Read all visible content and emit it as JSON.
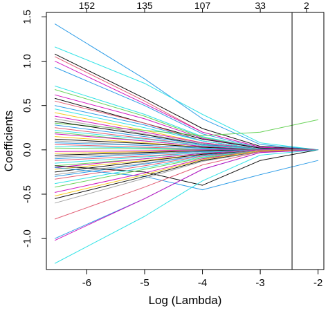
{
  "chart_data": {
    "type": "line",
    "title": "",
    "xlabel": "Log (Lambda)",
    "ylabel": "Coefficients",
    "xlim": [
      -6.7,
      -1.9
    ],
    "ylim": [
      -1.35,
      1.55
    ],
    "x_ticks": [
      -6,
      -5,
      -4,
      -3,
      -2
    ],
    "x_tick_labels": [
      "-6",
      "-5",
      "-4",
      "-3",
      "-2"
    ],
    "y_ticks": [
      -1.0,
      -0.5,
      0.0,
      0.5,
      1.0,
      1.5
    ],
    "y_tick_labels": [
      "-1.0",
      "-0.5",
      "0.0",
      "0.5",
      "1.0",
      "1.5"
    ],
    "top_axis": {
      "ticks": [
        -6.0,
        -5.0,
        -4.0,
        -3.0,
        -2.2
      ],
      "labels": [
        "152",
        "135",
        "107",
        "33",
        "2"
      ]
    },
    "vline_x": -2.45,
    "colors": [
      "#000000",
      "#DF536B",
      "#61D04F",
      "#2297E6",
      "#28E2E5",
      "#CD0BBC",
      "#F5C710",
      "#9E9E9E"
    ],
    "x_grid": [
      -6.55,
      -5.0,
      -4.0,
      -3.0,
      -2.0
    ],
    "series": [
      {
        "color": "#2297E6",
        "values": [
          1.42,
          0.8,
          0.35,
          0.06,
          0
        ]
      },
      {
        "color": "#28E2E5",
        "values": [
          1.16,
          0.75,
          0.4,
          0.08,
          0
        ]
      },
      {
        "color": "#000000",
        "values": [
          1.08,
          0.58,
          0.24,
          0.04,
          0
        ]
      },
      {
        "color": "#DF536B",
        "values": [
          1.05,
          0.55,
          0.2,
          0.03,
          0
        ]
      },
      {
        "color": "#CD0BBC",
        "values": [
          1.0,
          0.52,
          0.2,
          0.03,
          0
        ]
      },
      {
        "color": "#2297E6",
        "values": [
          0.93,
          0.5,
          0.18,
          0.02,
          0
        ]
      },
      {
        "color": "#28E2E5",
        "values": [
          0.72,
          0.4,
          0.15,
          0.02,
          0
        ]
      },
      {
        "color": "#61D04F",
        "values": [
          0.68,
          0.38,
          0.14,
          0.02,
          0
        ]
      },
      {
        "color": "#CD0BBC",
        "values": [
          0.62,
          0.35,
          0.13,
          0.02,
          0
        ]
      },
      {
        "color": "#000000",
        "values": [
          0.58,
          0.3,
          0.12,
          0.02,
          0
        ]
      },
      {
        "color": "#DF536B",
        "values": [
          0.55,
          0.3,
          0.1,
          0.01,
          0
        ]
      },
      {
        "color": "#2297E6",
        "values": [
          0.5,
          0.28,
          0.1,
          0.01,
          0
        ]
      },
      {
        "color": "#28E2E5",
        "values": [
          0.46,
          0.25,
          0.1,
          0.01,
          0
        ]
      },
      {
        "color": "#F5C710",
        "values": [
          0.42,
          0.22,
          0.08,
          0.01,
          0
        ]
      },
      {
        "color": "#61D04F",
        "values": [
          0.3,
          0.22,
          0.16,
          0.2,
          0.34
        ]
      },
      {
        "color": "#CD0BBC",
        "values": [
          0.38,
          0.2,
          0.08,
          0.01,
          0
        ]
      },
      {
        "color": "#9E9E9E",
        "values": [
          0.35,
          0.18,
          0.07,
          0.01,
          0
        ]
      },
      {
        "color": "#000000",
        "values": [
          0.32,
          0.17,
          0.06,
          0.01,
          0
        ]
      },
      {
        "color": "#2297E6",
        "values": [
          0.28,
          0.15,
          0.06,
          0.01,
          0
        ]
      },
      {
        "color": "#DF536B",
        "values": [
          0.25,
          0.13,
          0.05,
          0.01,
          0
        ]
      },
      {
        "color": "#28E2E5",
        "values": [
          0.22,
          0.12,
          0.05,
          0.01,
          0
        ]
      },
      {
        "color": "#61D04F",
        "values": [
          0.2,
          0.1,
          0.04,
          0.0,
          0
        ]
      },
      {
        "color": "#CD0BBC",
        "values": [
          0.18,
          0.1,
          0.04,
          0.0,
          0
        ]
      },
      {
        "color": "#F5C710",
        "values": [
          0.15,
          0.08,
          0.03,
          0.0,
          0
        ]
      },
      {
        "color": "#000000",
        "values": [
          0.12,
          0.07,
          0.03,
          0.0,
          0
        ]
      },
      {
        "color": "#9E9E9E",
        "values": [
          0.1,
          0.05,
          0.02,
          0.0,
          0
        ]
      },
      {
        "color": "#2297E6",
        "values": [
          0.08,
          0.05,
          0.02,
          0.0,
          0
        ]
      },
      {
        "color": "#DF536B",
        "values": [
          0.06,
          0.03,
          0.01,
          0.0,
          0
        ]
      },
      {
        "color": "#28E2E5",
        "values": [
          0.04,
          0.02,
          0.01,
          0.0,
          0
        ]
      },
      {
        "color": "#61D04F",
        "values": [
          0.02,
          0.01,
          0.0,
          0.0,
          0
        ]
      },
      {
        "color": "#CD0BBC",
        "values": [
          -0.02,
          -0.01,
          0.0,
          0.0,
          0
        ]
      },
      {
        "color": "#F5C710",
        "values": [
          -0.04,
          -0.02,
          -0.01,
          0.0,
          0
        ]
      },
      {
        "color": "#000000",
        "values": [
          -0.06,
          -0.03,
          -0.01,
          0.0,
          0
        ]
      },
      {
        "color": "#9E9E9E",
        "values": [
          -0.08,
          -0.04,
          -0.02,
          0.0,
          0
        ]
      },
      {
        "color": "#2297E6",
        "values": [
          -0.1,
          -0.05,
          -0.02,
          0.0,
          0
        ]
      },
      {
        "color": "#DF536B",
        "values": [
          -0.12,
          -0.07,
          -0.03,
          0.0,
          0
        ]
      },
      {
        "color": "#28E2E5",
        "values": [
          -0.15,
          -0.08,
          -0.03,
          0.0,
          0
        ]
      },
      {
        "color": "#61D04F",
        "values": [
          -0.18,
          -0.1,
          -0.04,
          0.0,
          0
        ]
      },
      {
        "color": "#CD0BBC",
        "values": [
          -0.2,
          -0.1,
          -0.04,
          0.0,
          0
        ]
      },
      {
        "color": "#F5C710",
        "values": [
          -0.22,
          -0.12,
          -0.05,
          -0.01,
          0
        ]
      },
      {
        "color": "#000000",
        "values": [
          -0.25,
          -0.13,
          -0.05,
          -0.01,
          0
        ]
      },
      {
        "color": "#9E9E9E",
        "values": [
          -0.28,
          -0.15,
          -0.06,
          -0.01,
          0
        ]
      },
      {
        "color": "#2297E6",
        "values": [
          -0.3,
          -0.16,
          -0.06,
          -0.01,
          0
        ]
      },
      {
        "color": "#DF536B",
        "values": [
          -0.33,
          -0.18,
          -0.07,
          -0.01,
          0
        ]
      },
      {
        "color": "#2297E6",
        "values": [
          -0.2,
          -0.3,
          -0.45,
          -0.28,
          -0.12
        ]
      },
      {
        "color": "#000000",
        "values": [
          -0.18,
          -0.25,
          -0.4,
          -0.12,
          0
        ]
      },
      {
        "color": "#28E2E5",
        "values": [
          -0.38,
          -0.2,
          -0.08,
          -0.01,
          0
        ]
      },
      {
        "color": "#61D04F",
        "values": [
          -0.42,
          -0.22,
          -0.09,
          -0.01,
          0
        ]
      },
      {
        "color": "#CD0BBC",
        "values": [
          -0.48,
          -0.26,
          -0.1,
          -0.01,
          0
        ]
      },
      {
        "color": "#F5C710",
        "values": [
          -0.52,
          -0.28,
          -0.11,
          -0.01,
          0
        ]
      },
      {
        "color": "#000000",
        "values": [
          -0.55,
          -0.3,
          -0.12,
          -0.02,
          0
        ]
      },
      {
        "color": "#9E9E9E",
        "values": [
          -0.6,
          -0.32,
          -0.13,
          -0.02,
          0
        ]
      },
      {
        "color": "#DF536B",
        "values": [
          -0.78,
          -0.42,
          -0.17,
          -0.02,
          0
        ]
      },
      {
        "color": "#2297E6",
        "values": [
          -1.0,
          -0.55,
          -0.22,
          -0.03,
          0
        ]
      },
      {
        "color": "#CD0BBC",
        "values": [
          -1.02,
          -0.55,
          -0.22,
          -0.03,
          0
        ]
      },
      {
        "color": "#28E2E5",
        "values": [
          -1.28,
          -0.75,
          -0.35,
          -0.06,
          0
        ]
      }
    ]
  }
}
